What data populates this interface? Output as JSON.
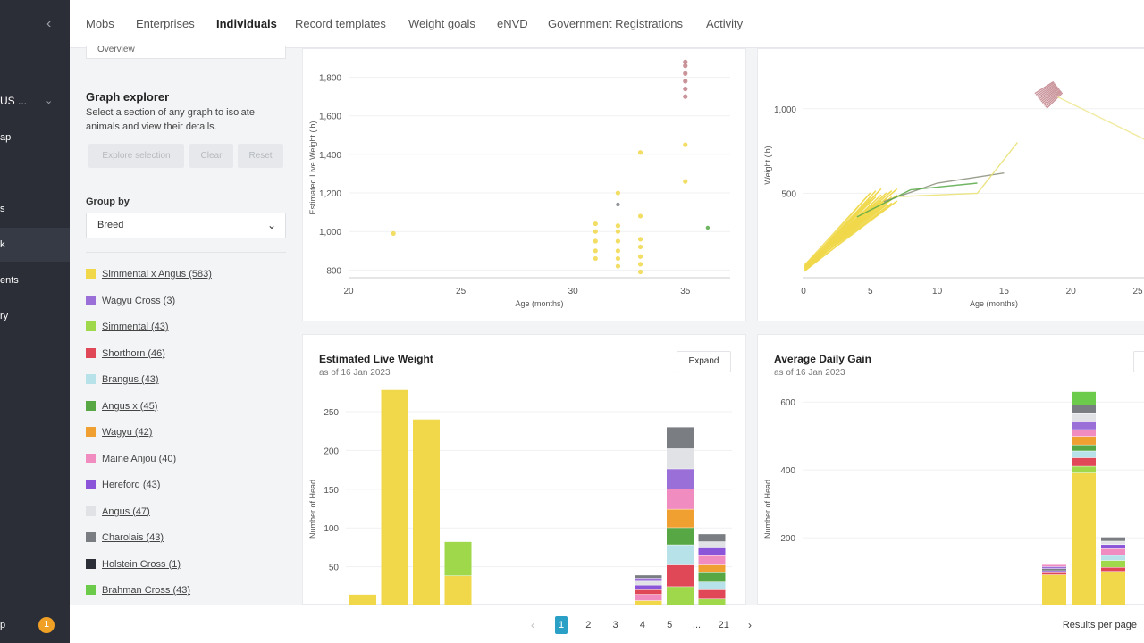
{
  "sidebar": {
    "collapse_icon": "chevron-left-icon",
    "farm_label": "US ...",
    "items": [
      {
        "label": "ap",
        "top": 148
      },
      {
        "label": "s",
        "top": 228
      },
      {
        "label": "k",
        "top": 268
      },
      {
        "label": "ents",
        "top": 308
      },
      {
        "label": "ry",
        "top": 348
      },
      {
        "label": "p",
        "top": 694
      }
    ],
    "badge": "1"
  },
  "topnav": {
    "tabs": [
      "Mobs",
      "Enterprises",
      "Individuals",
      "Record templates",
      "Weight goals",
      "eNVD",
      "Government Registrations",
      "Activity"
    ],
    "active": "Individuals"
  },
  "panel": {
    "overview_label": "Overview",
    "title": "Graph explorer",
    "description": "Select a section of any graph to isolate animals and view their details.",
    "buttons": {
      "explore": "Explore selection",
      "clear": "Clear",
      "reset": "Reset"
    },
    "group_by_label": "Group by",
    "group_by_value": "Breed",
    "legend": [
      {
        "label": "Simmental x Angus (583)",
        "color": "#f0d84a"
      },
      {
        "label": "Wagyu Cross (3)",
        "color": "#9b6fd8"
      },
      {
        "label": "Simmental (43)",
        "color": "#9fd84a"
      },
      {
        "label": "Shorthorn (46)",
        "color": "#e04858"
      },
      {
        "label": "Brangus (43)",
        "color": "#b8e2ea"
      },
      {
        "label": "Angus x (45)",
        "color": "#57a845"
      },
      {
        "label": "Wagyu (42)",
        "color": "#f0a030"
      },
      {
        "label": "Maine Anjou (40)",
        "color": "#f08cc0"
      },
      {
        "label": "Hereford (43)",
        "color": "#8a55d8"
      },
      {
        "label": "Angus (47)",
        "color": "#e0e2e5"
      },
      {
        "label": "Charolais (43)",
        "color": "#7a7e82"
      },
      {
        "label": "Holstein Cross (1)",
        "color": "#2b2e37"
      },
      {
        "label": "Brahman Cross (43)",
        "color": "#6ccb4a"
      }
    ]
  },
  "chart_data": [
    {
      "type": "scatter",
      "title": "",
      "xlabel": "Age (months)",
      "ylabel": "Estimated Live Weight (lb)",
      "xlim": [
        20,
        37
      ],
      "ylim": [
        760,
        1900
      ],
      "x_ticks": [
        "20",
        "25",
        "30",
        "35"
      ],
      "y_ticks": [
        "800",
        "1,000",
        "1,200",
        "1,400",
        "1,600",
        "1,800"
      ],
      "series": [
        {
          "color": "#f0d84a",
          "points": [
            [
              22,
              990
            ],
            [
              31,
              860
            ],
            [
              31,
              900
            ],
            [
              31,
              950
            ],
            [
              31,
              1000
            ],
            [
              31,
              1040
            ],
            [
              32,
              820
            ],
            [
              32,
              860
            ],
            [
              32,
              900
            ],
            [
              32,
              950
            ],
            [
              32,
              1000
            ],
            [
              32,
              1030
            ],
            [
              33,
              790
            ],
            [
              33,
              830
            ],
            [
              33,
              870
            ],
            [
              33,
              920
            ],
            [
              33,
              960
            ],
            [
              33,
              1080
            ],
            [
              33,
              1410
            ],
            [
              32,
              1200
            ],
            [
              35,
              1260
            ],
            [
              35,
              1450
            ]
          ]
        },
        {
          "color": "#c08088",
          "points": [
            [
              35,
              1700
            ],
            [
              35,
              1740
            ],
            [
              35,
              1780
            ],
            [
              35,
              1820
            ],
            [
              35,
              1860
            ],
            [
              35,
              1880
            ]
          ]
        },
        {
          "color": "#57a845",
          "points": [
            [
              36,
              1020
            ]
          ]
        },
        {
          "color": "#7a7e82",
          "points": [
            [
              32,
              1140
            ]
          ]
        }
      ]
    },
    {
      "type": "line",
      "title": "",
      "xlabel": "Age (months)",
      "ylabel": "Weight (lb)",
      "xlim": [
        0,
        26
      ],
      "ylim": [
        0,
        1300
      ],
      "x_ticks": [
        "0",
        "5",
        "10",
        "15",
        "20",
        "25"
      ],
      "y_ticks": [
        "500",
        "1,000"
      ]
    },
    {
      "type": "bar",
      "title": "Estimated Live Weight",
      "subtitle": "as of 16 Jan 2023",
      "button": "Expand",
      "xlabel": "",
      "ylabel": "Number of Head",
      "ylim": [
        0,
        280
      ],
      "y_ticks": [
        50,
        100,
        150,
        200,
        250
      ],
      "bars": [
        {
          "segments": [
            {
              "color": "#f0d84a",
              "value": 14
            }
          ]
        },
        {
          "segments": [
            {
              "color": "#f0d84a",
              "value": 278
            }
          ]
        },
        {
          "segments": [
            {
              "color": "#f0d84a",
              "value": 240
            }
          ]
        },
        {
          "segments": [
            {
              "color": "#f0d84a",
              "value": 38
            },
            {
              "color": "#9fd84a",
              "value": 44
            }
          ]
        },
        {
          "segments": []
        },
        {
          "segments": []
        },
        {
          "segments": []
        },
        {
          "segments": []
        },
        {
          "segments": []
        },
        {
          "segments": [
            {
              "color": "#f0d84a",
              "value": 6
            },
            {
              "color": "#f08cc0",
              "value": 8
            },
            {
              "color": "#e04858",
              "value": 6
            },
            {
              "color": "#8a55d8",
              "value": 6
            },
            {
              "color": "#e0e2e5",
              "value": 5
            },
            {
              "color": "#9b6fd8",
              "value": 4
            },
            {
              "color": "#7a7e82",
              "value": 4
            }
          ]
        },
        {
          "segments": [
            {
              "color": "#9fd84a",
              "value": 24
            },
            {
              "color": "#e04858",
              "value": 28
            },
            {
              "color": "#b8e2ea",
              "value": 26
            },
            {
              "color": "#57a845",
              "value": 22
            },
            {
              "color": "#f0a030",
              "value": 24
            },
            {
              "color": "#f08cc0",
              "value": 26
            },
            {
              "color": "#9b6fd8",
              "value": 26
            },
            {
              "color": "#e0e2e5",
              "value": 26
            },
            {
              "color": "#7a7e82",
              "value": 28
            }
          ]
        },
        {
          "segments": [
            {
              "color": "#9fd84a",
              "value": 8
            },
            {
              "color": "#e04858",
              "value": 12
            },
            {
              "color": "#b8e2ea",
              "value": 10
            },
            {
              "color": "#57a845",
              "value": 12
            },
            {
              "color": "#f0a030",
              "value": 10
            },
            {
              "color": "#f08cc0",
              "value": 12
            },
            {
              "color": "#8a55d8",
              "value": 10
            },
            {
              "color": "#e0e2e5",
              "value": 8
            },
            {
              "color": "#7a7e82",
              "value": 10
            }
          ]
        }
      ]
    },
    {
      "type": "bar",
      "title": "Average Daily Gain",
      "subtitle": "as of 16 Jan 2023",
      "xlabel": "",
      "ylabel": "Number of Head",
      "ylim": [
        0,
        640
      ],
      "y_ticks": [
        200,
        400,
        600
      ],
      "bars": [
        {
          "segments": []
        },
        {
          "segments": []
        },
        {
          "segments": []
        },
        {
          "segments": []
        },
        {
          "segments": []
        },
        {
          "segments": []
        },
        {
          "segments": []
        },
        {
          "segments": []
        },
        {
          "segments": [
            {
              "color": "#f0d84a",
              "value": 90
            },
            {
              "color": "#e04858",
              "value": 6
            },
            {
              "color": "#8a55d8",
              "value": 6
            },
            {
              "color": "#7a7e82",
              "value": 6
            },
            {
              "color": "#9b6fd8",
              "value": 6
            },
            {
              "color": "#f08cc0",
              "value": 6
            }
          ]
        },
        {
          "segments": [
            {
              "color": "#f0d84a",
              "value": 390
            },
            {
              "color": "#9fd84a",
              "value": 20
            },
            {
              "color": "#e04858",
              "value": 25
            },
            {
              "color": "#b8e2ea",
              "value": 20
            },
            {
              "color": "#57a845",
              "value": 18
            },
            {
              "color": "#f0a030",
              "value": 25
            },
            {
              "color": "#f08cc0",
              "value": 20
            },
            {
              "color": "#9b6fd8",
              "value": 25
            },
            {
              "color": "#e0e2e5",
              "value": 22
            },
            {
              "color": "#7a7e82",
              "value": 25
            },
            {
              "color": "#6ccb4a",
              "value": 40
            }
          ]
        },
        {
          "segments": [
            {
              "color": "#f0d84a",
              "value": 100
            },
            {
              "color": "#e04858",
              "value": 12
            },
            {
              "color": "#9fd84a",
              "value": 20
            },
            {
              "color": "#b8e2ea",
              "value": 15
            },
            {
              "color": "#f08cc0",
              "value": 20
            },
            {
              "color": "#8a55d8",
              "value": 12
            },
            {
              "color": "#e0e2e5",
              "value": 10
            },
            {
              "color": "#7a7e82",
              "value": 12
            }
          ]
        }
      ]
    }
  ],
  "pager": {
    "pages": [
      "1",
      "2",
      "3",
      "4",
      "5",
      "...",
      "21"
    ],
    "active": "1",
    "results_label": "Results per page"
  }
}
